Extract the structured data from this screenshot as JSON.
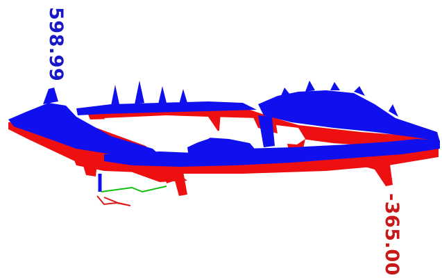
{
  "labels": {
    "max_value": "598.99",
    "min_value": "-365.00"
  },
  "colors": {
    "background": "#ffffff",
    "series_high": "#1010ee",
    "series_low": "#ee1010",
    "axis_x": "#e01818",
    "axis_y": "#10c010",
    "axis_z": "#1010ee"
  }
}
